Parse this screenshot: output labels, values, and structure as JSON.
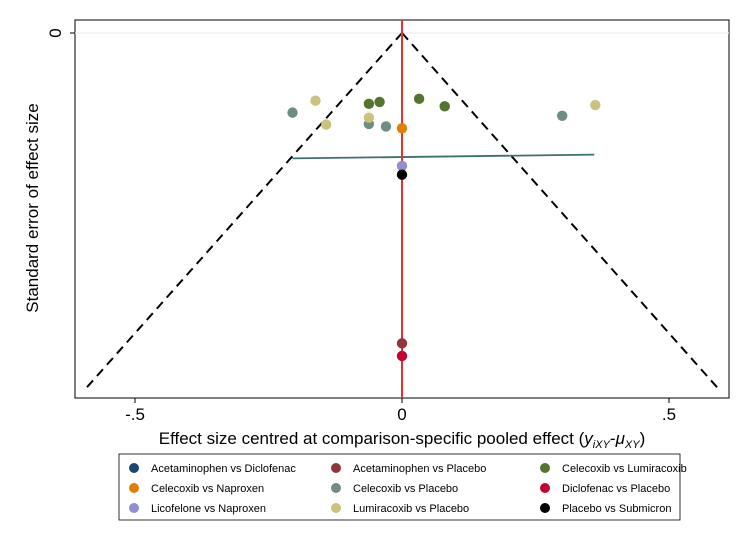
{
  "chart_data": {
    "type": "scatter",
    "subtype": "comparison-adjusted funnel plot",
    "xlabel_main": "Effect size centred at comparison-specific pooled effect (",
    "xlabel_y": "y",
    "xlabel_y_sub": "iXY",
    "xlabel_minus": "-",
    "xlabel_mu": "μ",
    "xlabel_mu_sub": "XY",
    "xlabel_close": ")",
    "ylabel": "Standard error of effect size",
    "xlim": [
      -0.6,
      0.6
    ],
    "ylim": [
      0,
      0.58
    ],
    "y_reversed": true,
    "x_ticks": [
      {
        "v": -0.5,
        "label": "-.5"
      },
      {
        "v": 0,
        "label": "0"
      },
      {
        "v": 0.5,
        "label": ".5"
      }
    ],
    "y_ticks": [
      {
        "v": 0,
        "label": "0"
      }
    ],
    "grid": "horizontal at y=0",
    "funnel": {
      "apex": [
        0,
        0
      ],
      "bottom_left": [
        -0.59,
        0.565
      ],
      "bottom_right": [
        0.59,
        0.565
      ],
      "style": "dashed",
      "color": "#000000"
    },
    "reference_line": {
      "x": 0,
      "color": "#e8302a"
    },
    "regression_line": {
      "x1": -0.205,
      "y1": 0.2,
      "x2": 0.36,
      "y2": 0.194,
      "color": "#3a7270"
    },
    "series": [
      {
        "name": "Acetaminophen vs Diclofenac",
        "color": "#1a476f",
        "points": []
      },
      {
        "name": "Acetaminophen vs Placebo",
        "color": "#90353b",
        "points": [
          [
            0,
            0.495
          ]
        ]
      },
      {
        "name": "Celecoxib vs Lumiracoxib",
        "color": "#55752f",
        "points": [
          [
            -0.062,
            0.113
          ],
          [
            -0.042,
            0.11
          ],
          [
            0.032,
            0.105
          ],
          [
            0.08,
            0.117
          ]
        ]
      },
      {
        "name": "Celecoxib vs Naproxen",
        "color": "#e37e00",
        "points": [
          [
            0,
            0.152
          ]
        ]
      },
      {
        "name": "Celecoxib vs Placebo",
        "color": "#6e8e84",
        "points": [
          [
            -0.205,
            0.127
          ],
          [
            -0.062,
            0.145
          ],
          [
            -0.03,
            0.149
          ],
          [
            0.3,
            0.132
          ]
        ]
      },
      {
        "name": "Diclofenac vs Placebo",
        "color": "#c10534",
        "points": [
          [
            0,
            0.515
          ]
        ]
      },
      {
        "name": "Licofelone vs Naproxen",
        "color": "#938dd2",
        "points": [
          [
            0,
            0.212
          ]
        ]
      },
      {
        "name": "Lumiracoxib vs Placebo",
        "color": "#cac27e",
        "points": [
          [
            -0.162,
            0.108
          ],
          [
            -0.142,
            0.146
          ],
          [
            -0.062,
            0.135
          ],
          [
            0.362,
            0.115
          ]
        ]
      },
      {
        "name": "Placebo vs Submicron",
        "color": "#000000",
        "points": [
          [
            0,
            0.226
          ]
        ]
      }
    ],
    "legend": {
      "position": "bottom",
      "columns": 3
    }
  }
}
